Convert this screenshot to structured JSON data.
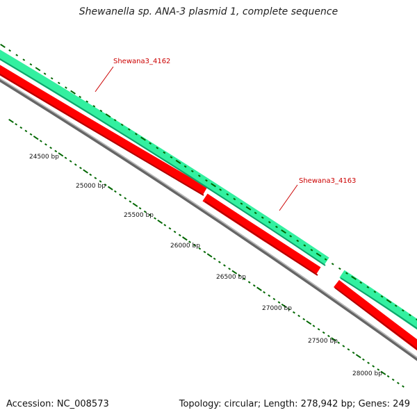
{
  "title": "Shewanella sp. ANA-3 plasmid 1, complete sequence",
  "accession": "Accession: NC_008573",
  "summary": "Topology: circular; Length: 278,942 bp; Genes: 249",
  "colors": {
    "forward_strand": "#33f0a0",
    "reverse_strand": "#ff0000",
    "backbone": "#888888",
    "tick": "#006600",
    "gene_label": "#cc0000"
  },
  "gene_labels": [
    "Shewana3_4162",
    "Shewana3_4163"
  ],
  "scale_labels": [
    "24500 bp",
    "25000 bp",
    "25500 bp",
    "26000 bp",
    "26500 bp",
    "27000 bp",
    "27500 bp",
    "28000 bp"
  ]
}
